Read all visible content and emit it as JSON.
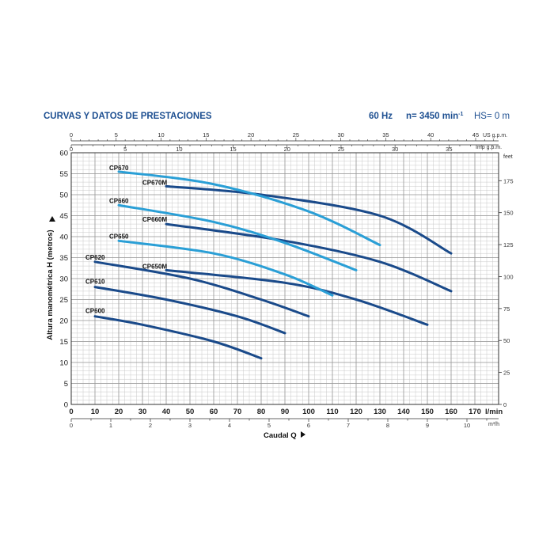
{
  "header": {
    "title": "CURVAS Y DATOS DE PRESTACIONES",
    "freq": "60 Hz",
    "speed_prefix": "n= 3450 min",
    "speed_sup": "-1",
    "hs": "HS= 0 m"
  },
  "colors": {
    "dark": "#1a4a8a",
    "light": "#2a9fd6",
    "header": "#1d4f91"
  },
  "chart_data": {
    "type": "line",
    "xlabel": "Caudal Q",
    "ylabel": "Altura manométrica H (metros)",
    "x_unit_bottom": "l/min",
    "x_unit_bottom2": "m³/h",
    "x_unit_top1": "US g.p.m.",
    "x_unit_top2": "Imp g.p.m.",
    "y_unit_right": "feet",
    "xlim": [
      0,
      180
    ],
    "ylim": [
      0,
      60
    ],
    "grid": true,
    "x_ticks": [
      0,
      10,
      20,
      30,
      40,
      50,
      60,
      70,
      80,
      90,
      100,
      110,
      120,
      130,
      140,
      150,
      160,
      170
    ],
    "y_ticks": [
      0,
      5,
      10,
      15,
      20,
      25,
      30,
      35,
      40,
      45,
      50,
      55,
      60
    ],
    "m3h_ticks": [
      0,
      1,
      2,
      3,
      4,
      5,
      6,
      7,
      8,
      9,
      10
    ],
    "usgpm_ticks": [
      0,
      5,
      10,
      15,
      20,
      25,
      30,
      35,
      40,
      45
    ],
    "impgpm_ticks": [
      0,
      5,
      10,
      15,
      20,
      25,
      30,
      35
    ],
    "feet_ticks": [
      0,
      25,
      50,
      75,
      100,
      125,
      150,
      175
    ],
    "series": [
      {
        "name": "CP670",
        "color": "light",
        "x": [
          20,
          60,
          100,
          130
        ],
        "y": [
          55.5,
          52.5,
          46,
          38
        ]
      },
      {
        "name": "CP670M",
        "color": "dark",
        "x": [
          40,
          80,
          130,
          160
        ],
        "y": [
          52,
          50,
          45,
          36
        ]
      },
      {
        "name": "CP660",
        "color": "light",
        "x": [
          20,
          60,
          90,
          120
        ],
        "y": [
          47.5,
          43.5,
          38.5,
          32
        ]
      },
      {
        "name": "CP660M",
        "color": "dark",
        "x": [
          40,
          90,
          130,
          160
        ],
        "y": [
          43,
          39,
          34,
          27
        ]
      },
      {
        "name": "CP650",
        "color": "light",
        "x": [
          20,
          60,
          90,
          110
        ],
        "y": [
          39,
          36,
          31,
          26
        ]
      },
      {
        "name": "CP650M",
        "color": "dark",
        "x": [
          40,
          90,
          120,
          150
        ],
        "y": [
          32,
          29,
          25,
          19
        ]
      },
      {
        "name": "CP620",
        "color": "dark",
        "x": [
          10,
          50,
          80,
          100
        ],
        "y": [
          34,
          30,
          25,
          21
        ]
      },
      {
        "name": "CP610",
        "color": "dark",
        "x": [
          10,
          40,
          70,
          90
        ],
        "y": [
          28,
          25,
          21,
          17
        ]
      },
      {
        "name": "CP600",
        "color": "dark",
        "x": [
          10,
          30,
          60,
          80
        ],
        "y": [
          21,
          19,
          15,
          11
        ]
      }
    ]
  }
}
